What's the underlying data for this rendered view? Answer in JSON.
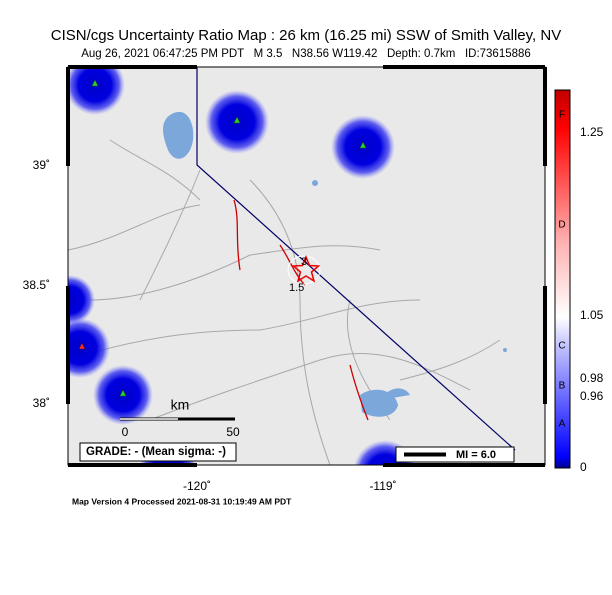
{
  "header": {
    "title": "CISN/cgs Uncertainty Ratio Map : 26 km (16.25 mi) SSW of Smith Valley, NV",
    "subtitle": "Aug 26, 2021 06:47:25 PM PDT   M 3.5   N38.56 W119.42   Depth: 0.7km   ID:73615886"
  },
  "map": {
    "lat_labels": [
      "39˚",
      "38.5˚",
      "38˚"
    ],
    "lon_labels": [
      "-120˚",
      "-119˚"
    ],
    "contour_labels": [
      "3",
      "1.5"
    ],
    "scale": {
      "unit": "km",
      "start": "0",
      "end": "50"
    },
    "grade": "GRADE: - (Mean sigma: -)",
    "mi": "MI = 6.0"
  },
  "colorbar": {
    "letters": [
      "F",
      "D",
      "C",
      "B",
      "A"
    ],
    "numbers": [
      "1.25",
      "1.05",
      "0.98",
      "0.96",
      "0"
    ]
  },
  "footer": "Map Version 4 Processed 2021-08-31 10:19:49 AM PDT"
}
